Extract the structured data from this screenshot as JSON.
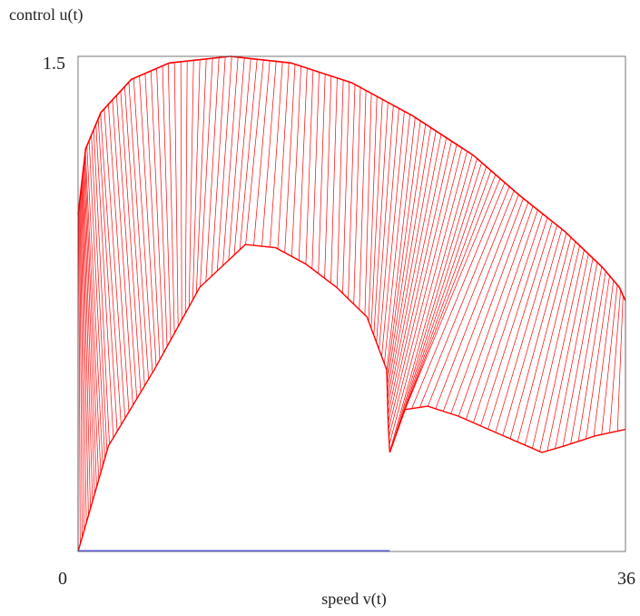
{
  "chart_data": {
    "type": "line",
    "title": "",
    "xlabel": "speed v(t)",
    "ylabel": "control u(t)",
    "xlim": [
      0,
      36
    ],
    "ylim": [
      0,
      1.5
    ],
    "x_tick_labels": [
      "0",
      "36"
    ],
    "y_tick_labels": [
      "1.5"
    ],
    "grid": false,
    "legend": "none",
    "colors": {
      "trajectories": "#ff0000",
      "baseline": "#4040ff",
      "frame": "#555555"
    },
    "series": [
      {
        "points": [
          [
            0,
            1.02
          ],
          [
            0.5,
            1.22
          ],
          [
            1.5,
            1.33
          ],
          [
            3.5,
            1.43
          ],
          [
            6,
            1.48
          ],
          [
            10,
            1.5
          ],
          [
            14,
            1.48
          ],
          [
            18,
            1.42
          ],
          [
            22,
            1.32
          ],
          [
            26,
            1.2
          ],
          [
            29,
            1.08
          ],
          [
            32,
            0.97
          ],
          [
            34.5,
            0.86
          ],
          [
            35.6,
            0.8
          ],
          [
            36,
            0.76
          ]
        ]
      },
      {
        "points": [
          [
            0,
            0.0
          ],
          [
            2,
            0.32
          ],
          [
            5,
            0.55
          ],
          [
            8,
            0.8
          ],
          [
            11,
            0.93
          ],
          [
            13,
            0.92
          ],
          [
            15,
            0.87
          ],
          [
            17,
            0.8
          ],
          [
            19,
            0.71
          ],
          [
            20.3,
            0.55
          ],
          [
            20.4,
            0.38
          ],
          [
            20.5,
            0.3
          ]
        ]
      },
      {
        "points": [
          [
            20.5,
            0.3
          ],
          [
            21.5,
            0.43
          ],
          [
            23,
            0.44
          ],
          [
            25,
            0.41
          ],
          [
            27,
            0.37
          ],
          [
            28.5,
            0.34
          ],
          [
            29.5,
            0.32
          ],
          [
            30.5,
            0.3
          ],
          [
            32,
            0.32
          ],
          [
            34,
            0.35
          ],
          [
            36,
            0.37
          ]
        ]
      },
      {
        "points": [
          [
            0,
            0.0
          ],
          [
            20.5,
            0.0
          ]
        ]
      }
    ]
  }
}
